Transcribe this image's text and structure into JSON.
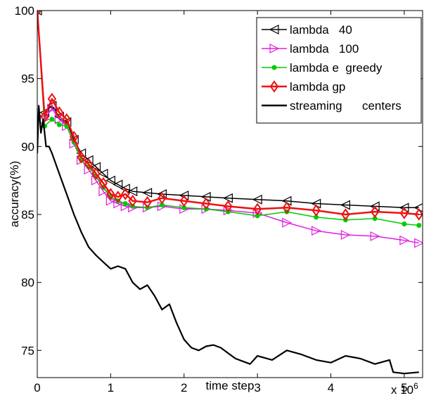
{
  "chart_data": {
    "type": "line",
    "xlabel": "time step",
    "ylabel": "accuracy(%)",
    "x_multiplier_label": "x 10",
    "x_multiplier_exp": "6",
    "xlim": [
      0,
      5.25
    ],
    "ylim": [
      73,
      100
    ],
    "xticks": [
      "0",
      "1",
      "2",
      "3",
      "4",
      "5"
    ],
    "yticks": [
      "75",
      "80",
      "85",
      "90",
      "95",
      "100"
    ],
    "legend_position": "top-right",
    "series": [
      {
        "name": "lambda   40",
        "color": "#000000",
        "marker": "triangle-left",
        "x": [
          0,
          0.1,
          0.2,
          0.3,
          0.4,
          0.5,
          0.6,
          0.7,
          0.8,
          0.9,
          1.0,
          1.1,
          1.2,
          1.3,
          1.5,
          1.7,
          2.0,
          2.3,
          2.6,
          3.0,
          3.4,
          3.8,
          4.2,
          4.6,
          5.0,
          5.2
        ],
        "values": [
          100,
          92.5,
          93,
          92.2,
          91.8,
          90.5,
          89.5,
          89.0,
          88.5,
          88.0,
          87.5,
          87.2,
          86.9,
          86.7,
          86.6,
          86.5,
          86.4,
          86.3,
          86.2,
          86.1,
          86.0,
          85.8,
          85.7,
          85.6,
          85.5,
          85.5
        ]
      },
      {
        "name": "lambda   100",
        "color": "#e020e0",
        "marker": "triangle-right",
        "x": [
          0,
          0.1,
          0.2,
          0.3,
          0.4,
          0.5,
          0.6,
          0.7,
          0.8,
          0.9,
          1.0,
          1.1,
          1.2,
          1.3,
          1.5,
          1.7,
          2.0,
          2.3,
          2.6,
          3.0,
          3.4,
          3.8,
          4.2,
          4.6,
          5.0,
          5.2
        ],
        "values": [
          100,
          92.0,
          92.8,
          92.0,
          91.5,
          90.2,
          89.0,
          88.3,
          87.5,
          86.7,
          86.0,
          85.8,
          85.6,
          85.5,
          85.5,
          85.6,
          85.4,
          85.4,
          85.3,
          85.1,
          84.4,
          83.8,
          83.5,
          83.4,
          83.1,
          82.9
        ]
      },
      {
        "name": "lambda e  greedy",
        "color": "#00cc00",
        "marker": "dot",
        "x": [
          0,
          0.1,
          0.2,
          0.3,
          0.4,
          0.5,
          0.6,
          0.7,
          0.8,
          0.9,
          1.0,
          1.1,
          1.2,
          1.3,
          1.5,
          1.7,
          2.0,
          2.3,
          2.6,
          3.0,
          3.4,
          3.8,
          4.2,
          4.6,
          5.0,
          5.2
        ],
        "values": [
          100,
          91.5,
          92.0,
          91.6,
          91.5,
          90.3,
          89.0,
          88.5,
          87.8,
          87.0,
          86.3,
          86.0,
          85.8,
          85.6,
          85.5,
          85.7,
          85.5,
          85.4,
          85.2,
          84.9,
          85.2,
          84.8,
          84.6,
          84.7,
          84.3,
          84.2
        ]
      },
      {
        "name": "lambda gp",
        "color": "#ee1111",
        "marker": "diamond",
        "x": [
          0,
          0.1,
          0.2,
          0.3,
          0.4,
          0.5,
          0.6,
          0.7,
          0.8,
          0.9,
          1.0,
          1.1,
          1.2,
          1.3,
          1.5,
          1.7,
          2.0,
          2.3,
          2.6,
          3.0,
          3.4,
          3.8,
          4.2,
          4.6,
          5.0,
          5.2
        ],
        "values": [
          100,
          92.2,
          93.5,
          92.5,
          92.0,
          90.7,
          89.2,
          88.7,
          88.0,
          87.3,
          86.5,
          86.3,
          86.5,
          86.0,
          85.9,
          86.2,
          86.0,
          85.8,
          85.6,
          85.4,
          85.5,
          85.3,
          85.0,
          85.2,
          85.1,
          85.0
        ]
      },
      {
        "name": "streaming      centers",
        "color": "#000000",
        "marker": "none",
        "x": [
          0,
          0.02,
          0.05,
          0.08,
          0.12,
          0.16,
          0.2,
          0.3,
          0.4,
          0.5,
          0.6,
          0.7,
          0.8,
          0.9,
          1.0,
          1.1,
          1.2,
          1.3,
          1.4,
          1.5,
          1.6,
          1.7,
          1.8,
          1.9,
          2.0,
          2.1,
          2.2,
          2.3,
          2.4,
          2.5,
          2.6,
          2.7,
          2.8,
          2.9,
          3.0,
          3.2,
          3.4,
          3.6,
          3.8,
          4.0,
          4.2,
          4.4,
          4.6,
          4.8,
          4.85,
          5.0,
          5.2
        ],
        "values": [
          89.5,
          93,
          91,
          92,
          90,
          90,
          89.5,
          88.0,
          86.5,
          85.0,
          83.7,
          82.6,
          82.0,
          81.5,
          81.0,
          81.2,
          81.0,
          80.0,
          79.5,
          79.8,
          79.0,
          78.0,
          78.4,
          77.0,
          75.8,
          75.2,
          75.0,
          75.3,
          75.4,
          75.2,
          74.8,
          74.4,
          74.2,
          74.0,
          74.6,
          74.3,
          75.0,
          74.7,
          74.3,
          74.1,
          74.6,
          74.4,
          74.0,
          74.3,
          73.4,
          73.3,
          73.4
        ]
      }
    ]
  }
}
